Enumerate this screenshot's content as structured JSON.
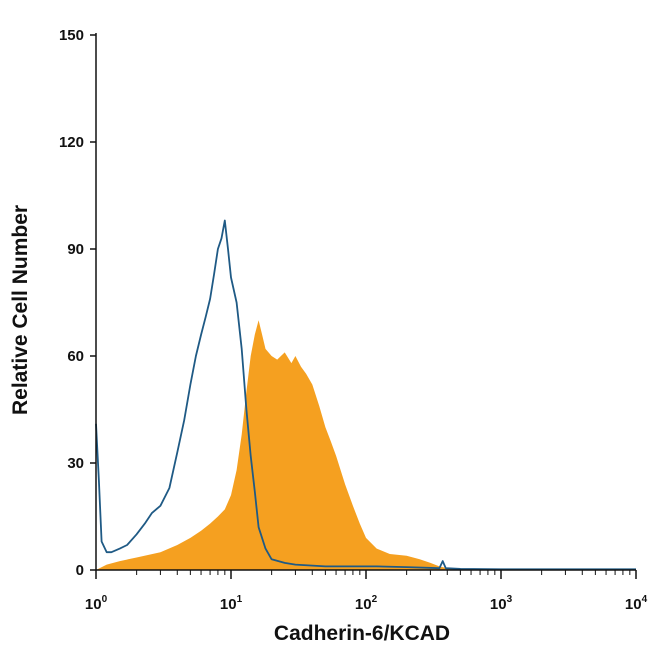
{
  "chart_data": {
    "type": "area",
    "xlabel": "Cadherin-6/KCAD",
    "ylabel": "Relative Cell Number",
    "x_scale": "log",
    "xlim": [
      1,
      10000
    ],
    "ylim": [
      0,
      150
    ],
    "y_ticks": [
      0,
      30,
      60,
      90,
      120,
      150
    ],
    "x_ticks": [
      {
        "value": 1,
        "base": "10",
        "exp": "0"
      },
      {
        "value": 10,
        "base": "10",
        "exp": "1"
      },
      {
        "value": 100,
        "base": "10",
        "exp": "2"
      },
      {
        "value": 1000,
        "base": "10",
        "exp": "3"
      },
      {
        "value": 10000,
        "base": "10",
        "exp": "4"
      }
    ],
    "grid": false,
    "legend": "none",
    "series": [
      {
        "style": "filled",
        "color": "#F5A020",
        "points": [
          [
            1,
            0
          ],
          [
            1.2,
            1.5
          ],
          [
            1.5,
            2.5
          ],
          [
            2,
            3.5
          ],
          [
            3,
            5
          ],
          [
            4,
            7
          ],
          [
            5,
            9
          ],
          [
            6,
            11
          ],
          [
            7,
            13
          ],
          [
            8,
            15
          ],
          [
            9,
            17
          ],
          [
            10,
            21
          ],
          [
            11,
            28
          ],
          [
            12,
            38
          ],
          [
            13,
            50
          ],
          [
            14,
            60
          ],
          [
            15,
            66
          ],
          [
            16,
            70
          ],
          [
            17,
            66
          ],
          [
            18,
            62
          ],
          [
            20,
            60
          ],
          [
            22,
            59
          ],
          [
            25,
            61
          ],
          [
            28,
            58
          ],
          [
            30,
            60
          ],
          [
            33,
            57
          ],
          [
            36,
            55
          ],
          [
            40,
            52
          ],
          [
            45,
            46
          ],
          [
            50,
            40
          ],
          [
            55,
            36
          ],
          [
            60,
            32
          ],
          [
            70,
            24
          ],
          [
            80,
            18
          ],
          [
            90,
            13
          ],
          [
            100,
            9
          ],
          [
            120,
            6
          ],
          [
            150,
            4.5
          ],
          [
            200,
            4
          ],
          [
            250,
            3
          ],
          [
            300,
            2
          ],
          [
            350,
            1
          ],
          [
            400,
            0.5
          ],
          [
            500,
            0
          ]
        ]
      },
      {
        "style": "line",
        "color": "#1F5A85",
        "points": [
          [
            1,
            41
          ],
          [
            1.05,
            25
          ],
          [
            1.1,
            8
          ],
          [
            1.2,
            5
          ],
          [
            1.3,
            5
          ],
          [
            1.5,
            6
          ],
          [
            1.7,
            7
          ],
          [
            2,
            10
          ],
          [
            2.3,
            13
          ],
          [
            2.6,
            16
          ],
          [
            3,
            18
          ],
          [
            3.5,
            23
          ],
          [
            4,
            33
          ],
          [
            4.5,
            42
          ],
          [
            5,
            52
          ],
          [
            5.5,
            60
          ],
          [
            6,
            66
          ],
          [
            6.5,
            71
          ],
          [
            7,
            76
          ],
          [
            7.5,
            83
          ],
          [
            8,
            90
          ],
          [
            8.5,
            93
          ],
          [
            9,
            98
          ],
          [
            9.5,
            90
          ],
          [
            10,
            82
          ],
          [
            11,
            75
          ],
          [
            12,
            62
          ],
          [
            13,
            45
          ],
          [
            14,
            32
          ],
          [
            15,
            22
          ],
          [
            16,
            12
          ],
          [
            18,
            6
          ],
          [
            20,
            3
          ],
          [
            25,
            2
          ],
          [
            30,
            1.5
          ],
          [
            50,
            1
          ],
          [
            80,
            1
          ],
          [
            120,
            1
          ],
          [
            200,
            0.8
          ],
          [
            350,
            0.5
          ],
          [
            370,
            2.5
          ],
          [
            390,
            0.5
          ],
          [
            500,
            0.3
          ],
          [
            1000,
            0.2
          ],
          [
            10000,
            0.2
          ]
        ]
      }
    ]
  }
}
